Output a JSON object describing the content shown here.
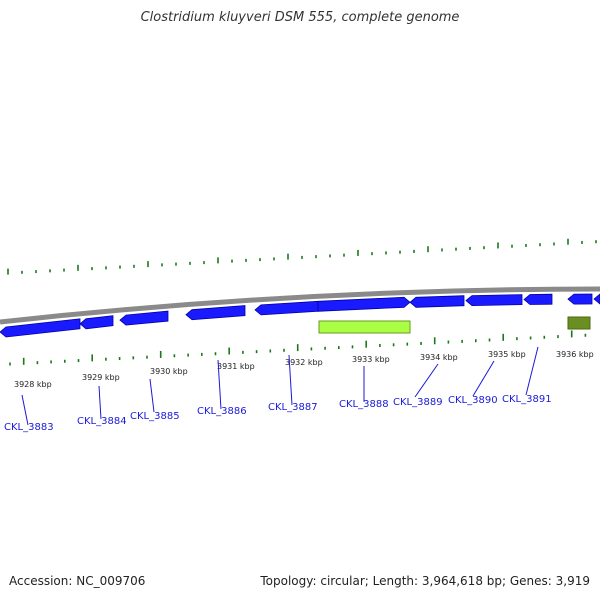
{
  "title": "Clostridium kluyveri DSM 555, complete genome",
  "footer": {
    "accession": "Accession: NC_009706",
    "topology": "Topology: circular; Length: 3,964,618 bp; Genes: 3,919"
  },
  "colors": {
    "gene_strand": "#1a1aff",
    "gene_strand_dark": "#0000aa",
    "gene_highlight": "#aaff44",
    "gene_highlight_dark": "#6a9a20",
    "gene_other": "#6b8e23",
    "backbone": "#8a8a8a",
    "tick": "#1a7a1a",
    "gene_label": "#1a1ad6"
  },
  "kbp_labels": [
    "3928 kbp",
    "3929 kbp",
    "3930 kbp",
    "3931 kbp",
    "3932 kbp",
    "3933 kbp",
    "3934 kbp",
    "3935 kbp",
    "3936 kbp"
  ],
  "genes": [
    {
      "label": "CKL_3883",
      "kind": "blue"
    },
    {
      "label": "CKL_3884",
      "kind": "blue"
    },
    {
      "label": "CKL_3885",
      "kind": "blue"
    },
    {
      "label": "CKL_3886",
      "kind": "blue"
    },
    {
      "label": "CKL_3887",
      "kind": "blue"
    },
    {
      "label": "CKL_3888",
      "kind": "blue"
    },
    {
      "label": "CKL_3889",
      "kind": "blue"
    },
    {
      "label": "CKL_3890",
      "kind": "blue"
    },
    {
      "label": "CKL_3891",
      "kind": "blue"
    }
  ]
}
